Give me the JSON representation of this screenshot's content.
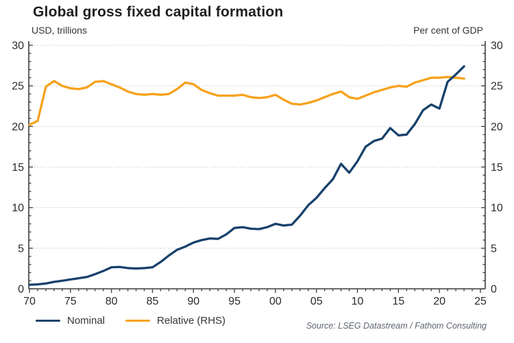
{
  "header": {
    "title": "Global gross fixed capital formation",
    "subtitle_left": "USD, trillions",
    "subtitle_right": "Per cent of GDP"
  },
  "source": {
    "text": "Source: LSEG Datastream / Fathom Consulting"
  },
  "chart_data": {
    "type": "line",
    "title": "Global gross fixed capital formation",
    "ylabel_left": "USD, trillions",
    "ylabel_right": "Per cent of GDP",
    "ylim": [
      0,
      30
    ],
    "ytick_major_step": 5,
    "ytick_minor_step": 1,
    "ytick_labels": [
      "0",
      "5",
      "10",
      "15",
      "20",
      "25",
      "30"
    ],
    "grid": "dotted-horizontal",
    "legend_position": "bottom-left",
    "x_range": [
      1970,
      2025
    ],
    "x_ticks": [
      {
        "year": 1970,
        "label": "70"
      },
      {
        "year": 1975,
        "label": "75"
      },
      {
        "year": 1980,
        "label": "80"
      },
      {
        "year": 1985,
        "label": "85"
      },
      {
        "year": 1990,
        "label": "90"
      },
      {
        "year": 1995,
        "label": "95"
      },
      {
        "year": 2000,
        "label": "00"
      },
      {
        "year": 2005,
        "label": "05"
      },
      {
        "year": 2010,
        "label": "10"
      },
      {
        "year": 2015,
        "label": "15"
      },
      {
        "year": 2020,
        "label": "20"
      },
      {
        "year": 2025,
        "label": "25"
      }
    ],
    "x": [
      1970,
      1971,
      1972,
      1973,
      1974,
      1975,
      1976,
      1977,
      1978,
      1979,
      1980,
      1981,
      1982,
      1983,
      1984,
      1985,
      1986,
      1987,
      1988,
      1989,
      1990,
      1991,
      1992,
      1993,
      1994,
      1995,
      1996,
      1997,
      1998,
      1999,
      2000,
      2001,
      2002,
      2003,
      2004,
      2005,
      2006,
      2007,
      2008,
      2009,
      2010,
      2011,
      2012,
      2013,
      2014,
      2015,
      2016,
      2017,
      2018,
      2019,
      2020,
      2021,
      2022,
      2023
    ],
    "series": [
      {
        "name": "Nominal",
        "axis": "left",
        "color": "#17416b",
        "values": [
          0.5,
          0.55,
          0.65,
          0.85,
          1.0,
          1.15,
          1.3,
          1.45,
          1.8,
          2.2,
          2.65,
          2.7,
          2.55,
          2.5,
          2.55,
          2.65,
          3.3,
          4.1,
          4.8,
          5.2,
          5.7,
          6.0,
          6.2,
          6.15,
          6.7,
          7.5,
          7.6,
          7.4,
          7.35,
          7.6,
          8.0,
          7.8,
          7.9,
          9.0,
          10.3,
          11.2,
          12.4,
          13.5,
          15.4,
          14.3,
          15.7,
          17.5,
          18.2,
          18.5,
          19.8,
          18.9,
          19.0,
          20.3,
          22.0,
          22.7,
          22.2,
          25.5,
          26.4,
          27.4
        ]
      },
      {
        "name": "Relative (RHS)",
        "axis": "right",
        "color": "#f7a21d",
        "values": [
          20.2,
          20.7,
          24.9,
          25.6,
          25.0,
          24.7,
          24.6,
          24.8,
          25.5,
          25.6,
          25.2,
          24.8,
          24.3,
          24.0,
          23.9,
          24.0,
          23.9,
          24.0,
          24.6,
          25.4,
          25.2,
          24.5,
          24.1,
          23.8,
          23.8,
          23.8,
          23.9,
          23.6,
          23.5,
          23.6,
          23.9,
          23.3,
          22.8,
          22.7,
          22.9,
          23.2,
          23.6,
          24.0,
          24.3,
          23.6,
          23.4,
          23.8,
          24.2,
          24.5,
          24.8,
          25.0,
          24.9,
          25.4,
          25.7,
          26.0,
          26.0,
          26.1,
          26.0,
          25.9
        ]
      }
    ]
  }
}
